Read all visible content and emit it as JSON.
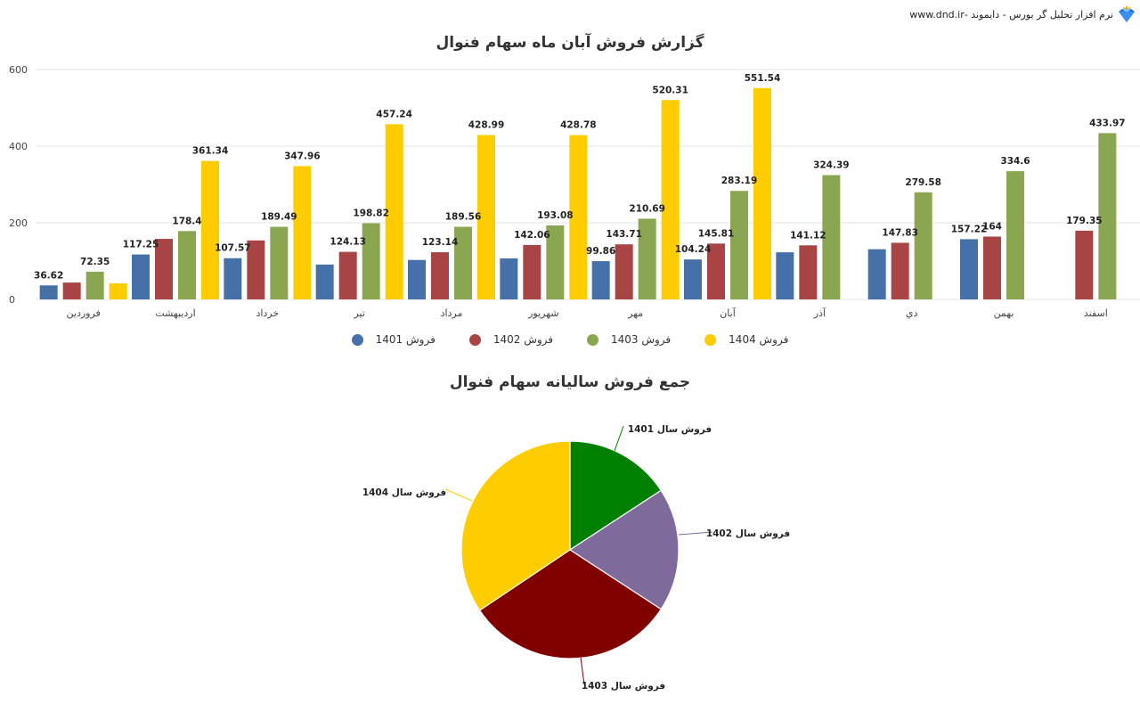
{
  "header": {
    "brand_text": "نرم افزار تحلیل گر بورس - دایموند -www.dnd.ir",
    "logo_icon": "diamond-crown-icon"
  },
  "colors": {
    "s1401": "#4571a8",
    "s1402": "#a94444",
    "s1403": "#8aa651",
    "s1404": "#ffcc00",
    "pie1401": "#008000",
    "pie1402": "#7f6a9c",
    "pie1403": "#800000",
    "pie1404": "#ffcc00",
    "grid": "#e6e6e6",
    "axis_text": "#444444"
  },
  "chart_data": [
    {
      "type": "bar",
      "title": "گزارش فروش آبان ماه سهام فنوال",
      "xlabel": "",
      "ylabel": "",
      "ylim": [
        0,
        600
      ],
      "yticks": [
        0,
        200,
        400,
        600
      ],
      "grid": true,
      "legend_position": "bottom",
      "categories": [
        "فروردين",
        "اردیبهشت",
        "خرداد",
        "تير",
        "مرداد",
        "شهريور",
        "مهر",
        "آبان",
        "آذر",
        "دي",
        "بهمن",
        "اسفند"
      ],
      "series": [
        {
          "name": "فروش 1401",
          "values": [
            36.62,
            117.25,
            107.57,
            91,
            103,
            107,
            99.86,
            104.24,
            123,
            131,
            157.22,
            null
          ]
        },
        {
          "name": "فروش 1402",
          "values": [
            44,
            158,
            154,
            124.13,
            123.14,
            142.06,
            143.71,
            145.81,
            141.12,
            147.83,
            164,
            179.35
          ]
        },
        {
          "name": "فروش 1403",
          "values": [
            72.35,
            178.4,
            189.49,
            198.82,
            189.56,
            193.08,
            210.69,
            283.19,
            324.39,
            279.58,
            334.6,
            433.97
          ]
        },
        {
          "name": "فروش 1404",
          "values": [
            42,
            361.34,
            347.96,
            457.24,
            428.99,
            428.78,
            520.31,
            551.54,
            null,
            null,
            null,
            null
          ]
        }
      ],
      "data_labels": [
        {
          "category": "فروردين",
          "labels": [
            "36.62",
            "",
            "72.35",
            ""
          ]
        },
        {
          "category": "اردیبهشت",
          "labels": [
            "117.25",
            "",
            "178.4",
            "361.34"
          ]
        },
        {
          "category": "خرداد",
          "labels": [
            "107.57",
            "",
            "189.49",
            "347.96"
          ]
        },
        {
          "category": "تير",
          "labels": [
            "",
            "124.13",
            "198.82",
            "457.24"
          ]
        },
        {
          "category": "مرداد",
          "labels": [
            "",
            "123.14",
            "189.56",
            "428.99"
          ]
        },
        {
          "category": "شهريور",
          "labels": [
            "",
            "142.06",
            "193.08",
            "428.78"
          ]
        },
        {
          "category": "مهر",
          "labels": [
            "99.86",
            "143.71",
            "210.69",
            "520.31"
          ]
        },
        {
          "category": "آبان",
          "labels": [
            "104.24",
            "145.81",
            "283.19",
            "551.54"
          ]
        },
        {
          "category": "آذر",
          "labels": [
            "",
            "141.12",
            "324.39",
            ""
          ]
        },
        {
          "category": "دي",
          "labels": [
            "",
            "147.83",
            "279.58",
            ""
          ]
        },
        {
          "category": "بهمن",
          "labels": [
            "157.22",
            "164",
            "334.6",
            ""
          ]
        },
        {
          "category": "اسفند",
          "labels": [
            "",
            "179.35",
            "433.97",
            ""
          ]
        }
      ]
    },
    {
      "type": "pie",
      "title": "جمع فروش سالیانه سهام فنوال",
      "labels": [
        "فروش سال 1401",
        "فروش سال 1402",
        "فروش سال 1403",
        "فروش سال 1404"
      ],
      "values": [
        15.8,
        18.4,
        31.4,
        34.4
      ],
      "unit": "percent (estimated from slice angles)"
    }
  ],
  "legend": [
    {
      "label": "فروش 1401",
      "color_key": "s1401"
    },
    {
      "label": "فروش 1402",
      "color_key": "s1402"
    },
    {
      "label": "فروش 1403",
      "color_key": "s1403"
    },
    {
      "label": "فروش 1404",
      "color_key": "s1404"
    }
  ]
}
